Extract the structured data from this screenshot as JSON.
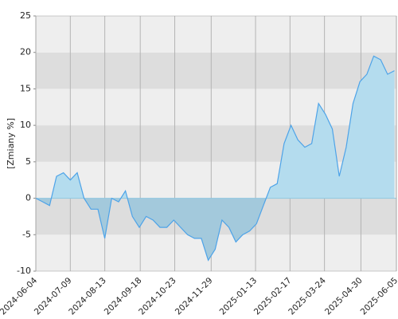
{
  "chart_data": {
    "type": "area",
    "ylabel": "[Zmiany %]",
    "x": [
      "2024-06-04",
      "2024-06-11",
      "2024-06-18",
      "2024-06-25",
      "2024-07-02",
      "2024-07-09",
      "2024-07-16",
      "2024-07-23",
      "2024-07-30",
      "2024-08-06",
      "2024-08-13",
      "2024-08-20",
      "2024-08-27",
      "2024-09-03",
      "2024-09-10",
      "2024-09-17",
      "2024-09-24",
      "2024-10-01",
      "2024-10-08",
      "2024-10-15",
      "2024-10-22",
      "2024-10-29",
      "2024-11-05",
      "2024-11-12",
      "2024-11-19",
      "2024-11-26",
      "2024-12-03",
      "2024-12-10",
      "2024-12-17",
      "2024-12-24",
      "2024-12-31",
      "2025-01-07",
      "2025-01-14",
      "2025-01-21",
      "2025-01-28",
      "2025-02-04",
      "2025-02-11",
      "2025-02-18",
      "2025-02-25",
      "2025-03-04",
      "2025-03-11",
      "2025-03-18",
      "2025-03-25",
      "2025-04-01",
      "2025-04-08",
      "2025-04-15",
      "2025-04-22",
      "2025-04-29",
      "2025-05-06",
      "2025-05-13",
      "2025-05-20",
      "2025-05-27",
      "2025-06-03"
    ],
    "values": [
      0,
      -0.5,
      -1,
      3,
      3.5,
      2.5,
      3.5,
      0,
      -1.5,
      -1.5,
      -5.5,
      0,
      -0.5,
      1,
      -2.5,
      -4,
      -2.5,
      -3,
      -4,
      -4,
      -3,
      -4,
      -5,
      -5.5,
      -5.5,
      -8.5,
      -7,
      -3,
      -4,
      -6,
      -5,
      -4.5,
      -3.5,
      -1,
      1.5,
      2,
      7.5,
      10,
      8,
      7,
      7.5,
      13,
      11.5,
      9.5,
      3,
      7,
      13,
      16,
      17,
      19.5,
      19,
      17,
      17.5
    ],
    "color": "#4da3e8",
    "xlim": [
      "2024-06-04",
      "2025-06-05"
    ],
    "xticks": [
      "2024-06-04",
      "2024-07-09",
      "2024-08-13",
      "2024-09-18",
      "2024-10-23",
      "2024-11-29",
      "2025-01-13",
      "2025-02-17",
      "2025-03-24",
      "2025-04-30",
      "2025-06-05"
    ],
    "ylim": [
      -10,
      25
    ],
    "yticks": [
      -10,
      -5,
      0,
      5,
      10,
      15,
      20,
      25
    ],
    "grid": true
  }
}
